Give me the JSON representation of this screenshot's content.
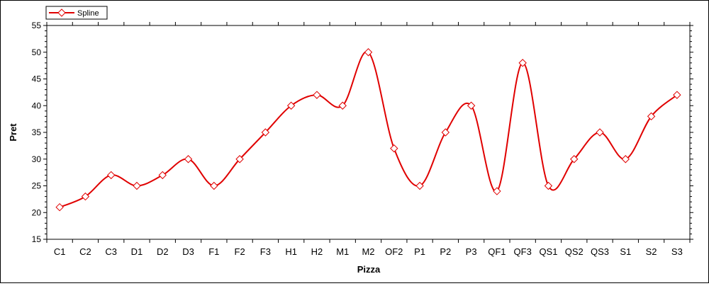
{
  "chart_data": {
    "type": "line",
    "curve": "spline",
    "markers": "diamond",
    "xlabel": "Pizza",
    "ylabel": "Pret",
    "ylim": [
      15,
      55
    ],
    "y_ticks": [
      15,
      20,
      25,
      30,
      35,
      40,
      45,
      50,
      55
    ],
    "grid": false,
    "legend_position": "top-left",
    "categories": [
      "C1",
      "C2",
      "C3",
      "D1",
      "D2",
      "D3",
      "F1",
      "F2",
      "F3",
      "H1",
      "H2",
      "M1",
      "M2",
      "OF2",
      "P1",
      "P2",
      "P3",
      "QF1",
      "QF3",
      "QS1",
      "QS2",
      "QS3",
      "S1",
      "S2",
      "S3"
    ],
    "series": [
      {
        "name": "Spline",
        "color": "#e00000",
        "values": [
          21,
          23,
          27,
          25,
          27,
          30,
          25,
          30,
          35,
          40,
          42,
          40,
          50,
          32,
          25,
          35,
          40,
          24,
          48,
          25,
          30,
          35,
          30,
          38,
          42
        ]
      }
    ]
  }
}
